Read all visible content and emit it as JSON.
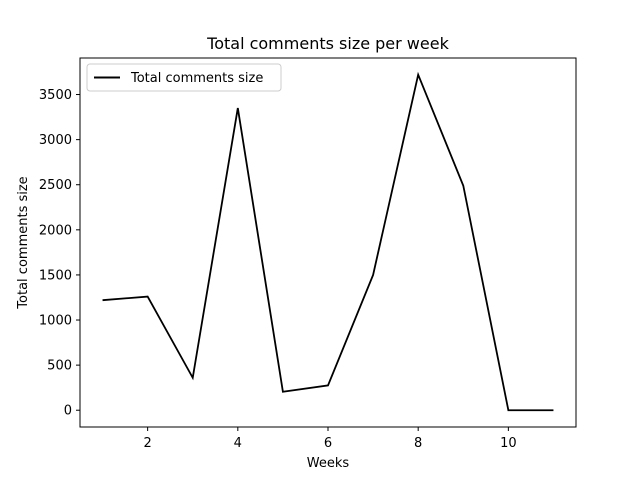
{
  "chart_data": {
    "type": "line",
    "title": "Total comments size per week",
    "xlabel": "Weeks",
    "ylabel": "Total comments size",
    "xlim": [
      0.5,
      11.5
    ],
    "ylim": [
      -186,
      3905
    ],
    "xticks": [
      2,
      4,
      6,
      8,
      10
    ],
    "yticks": [
      0,
      500,
      1000,
      1500,
      2000,
      2500,
      3000,
      3500
    ],
    "grid": false,
    "legend_position": "upper-left",
    "x": [
      1,
      2,
      3,
      4,
      5,
      6,
      7,
      8,
      9,
      10,
      11
    ],
    "series": [
      {
        "name": "Total comments size",
        "color": "#000000",
        "values": [
          1220,
          1260,
          360,
          3350,
          205,
          275,
          1500,
          3720,
          2490,
          0,
          0
        ]
      }
    ]
  }
}
